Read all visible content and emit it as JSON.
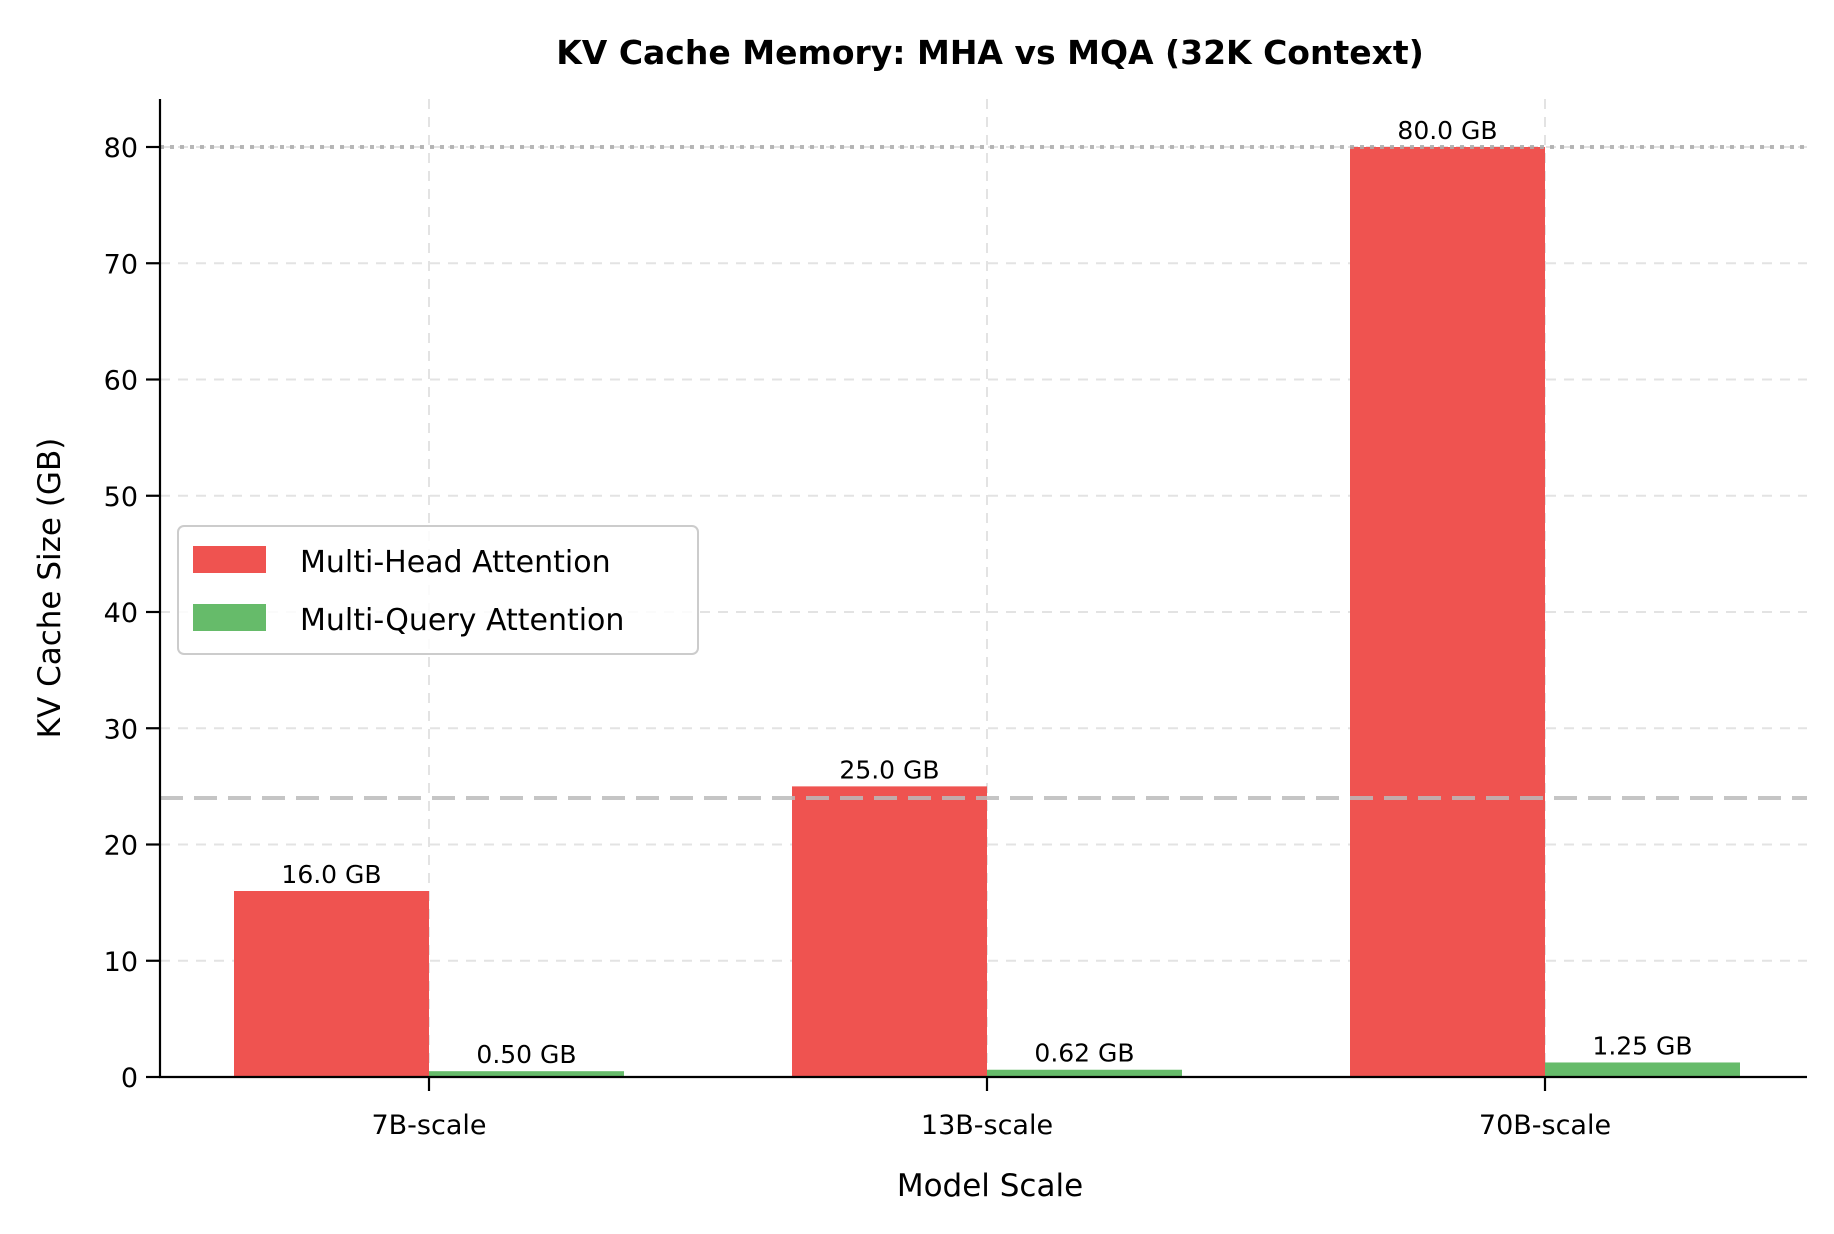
{
  "chart_data": {
    "type": "bar",
    "title": "KV Cache Memory: MHA vs MQA (32K Context)",
    "xlabel": "Model Scale",
    "ylabel": "KV Cache Size (GB)",
    "categories": [
      "7B-scale",
      "13B-scale",
      "70B-scale"
    ],
    "series": [
      {
        "name": "Multi-Head Attention",
        "color": "#ef5350",
        "values": [
          16.0,
          25.0,
          80.0
        ],
        "labels": [
          "16.0 GB",
          "25.0 GB",
          "80.0 GB"
        ]
      },
      {
        "name": "Multi-Query Attention",
        "color": "#66bb6a",
        "values": [
          0.5,
          0.625,
          1.25
        ],
        "labels": [
          "0.50 GB",
          "0.62 GB",
          "1.25 GB"
        ]
      }
    ],
    "ylim": [
      0,
      84
    ],
    "yticks": [
      0,
      10,
      20,
      30,
      40,
      50,
      60,
      70,
      80
    ],
    "ytick_labels": [
      "0",
      "10",
      "20",
      "30",
      "40",
      "50",
      "60",
      "70",
      "80"
    ],
    "reference_lines": [
      {
        "y": 80,
        "style": "dotted",
        "color": "#aaaaaa"
      },
      {
        "y": 24,
        "style": "dashed",
        "color": "#bbbbbb"
      }
    ],
    "grid": true,
    "legend_position": "center left"
  }
}
